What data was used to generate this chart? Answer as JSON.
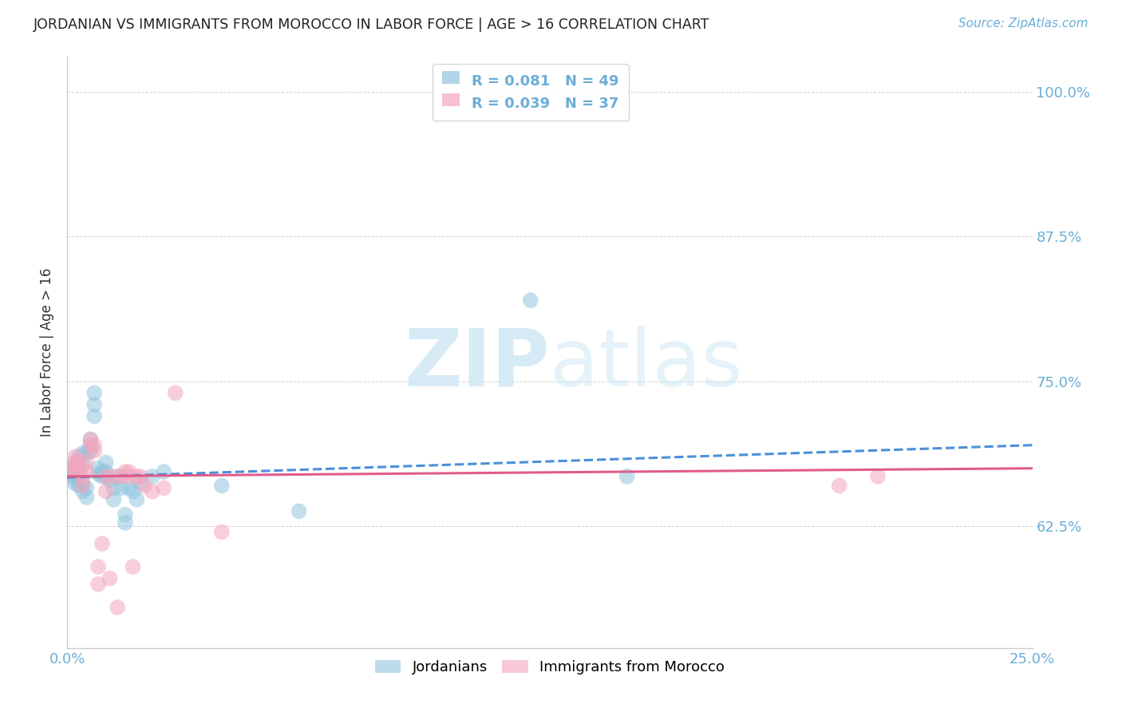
{
  "title": "JORDANIAN VS IMMIGRANTS FROM MOROCCO IN LABOR FORCE | AGE > 16 CORRELATION CHART",
  "source": "Source: ZipAtlas.com",
  "ylabel": "In Labor Force | Age > 16",
  "ytick_labels": [
    "62.5%",
    "75.0%",
    "87.5%",
    "100.0%"
  ],
  "ytick_values": [
    0.625,
    0.75,
    0.875,
    1.0
  ],
  "xlim": [
    0.0,
    0.25
  ],
  "ylim": [
    0.52,
    1.03
  ],
  "legend1_r": "R = 0.081",
  "legend1_n": "N = 49",
  "legend2_r": "R = 0.039",
  "legend2_n": "N = 37",
  "blue_color": "#92c5de",
  "pink_color": "#f4a6be",
  "trend_blue_color": "#4a90d9",
  "trend_pink_color": "#e05c8a",
  "axis_color": "#6baed6",
  "watermark_color": "#d0e8f5",
  "jordanians_x": [
    0.001,
    0.001,
    0.001,
    0.002,
    0.002,
    0.002,
    0.002,
    0.003,
    0.003,
    0.003,
    0.003,
    0.003,
    0.004,
    0.004,
    0.004,
    0.004,
    0.005,
    0.005,
    0.005,
    0.006,
    0.006,
    0.006,
    0.007,
    0.007,
    0.007,
    0.008,
    0.008,
    0.009,
    0.009,
    0.01,
    0.01,
    0.01,
    0.011,
    0.012,
    0.012,
    0.013,
    0.014,
    0.015,
    0.015,
    0.016,
    0.017,
    0.018,
    0.019,
    0.022,
    0.025,
    0.04,
    0.06,
    0.12,
    0.145
  ],
  "jordanians_y": [
    0.668,
    0.671,
    0.675,
    0.662,
    0.668,
    0.672,
    0.68,
    0.66,
    0.663,
    0.671,
    0.681,
    0.685,
    0.655,
    0.662,
    0.678,
    0.688,
    0.65,
    0.658,
    0.688,
    0.69,
    0.695,
    0.7,
    0.72,
    0.73,
    0.74,
    0.67,
    0.675,
    0.668,
    0.672,
    0.668,
    0.672,
    0.68,
    0.665,
    0.648,
    0.658,
    0.668,
    0.658,
    0.628,
    0.635,
    0.658,
    0.655,
    0.648,
    0.662,
    0.668,
    0.672,
    0.66,
    0.638,
    0.82,
    0.668
  ],
  "morocco_x": [
    0.001,
    0.001,
    0.002,
    0.002,
    0.003,
    0.003,
    0.003,
    0.004,
    0.004,
    0.005,
    0.005,
    0.006,
    0.006,
    0.007,
    0.007,
    0.008,
    0.008,
    0.009,
    0.01,
    0.01,
    0.011,
    0.012,
    0.013,
    0.014,
    0.015,
    0.016,
    0.016,
    0.017,
    0.018,
    0.019,
    0.02,
    0.022,
    0.025,
    0.028,
    0.04,
    0.2,
    0.21
  ],
  "morocco_y": [
    0.672,
    0.675,
    0.68,
    0.685,
    0.672,
    0.678,
    0.682,
    0.66,
    0.668,
    0.672,
    0.68,
    0.695,
    0.7,
    0.69,
    0.695,
    0.575,
    0.59,
    0.61,
    0.655,
    0.668,
    0.58,
    0.668,
    0.555,
    0.668,
    0.672,
    0.668,
    0.672,
    0.59,
    0.668,
    0.668,
    0.66,
    0.655,
    0.658,
    0.74,
    0.62,
    0.66,
    0.668
  ],
  "trend_blue_x0": 0.0,
  "trend_blue_y0": 0.667,
  "trend_blue_x1": 0.25,
  "trend_blue_y1": 0.695,
  "trend_pink_x0": 0.0,
  "trend_pink_y0": 0.668,
  "trend_pink_x1": 0.25,
  "trend_pink_y1": 0.675
}
